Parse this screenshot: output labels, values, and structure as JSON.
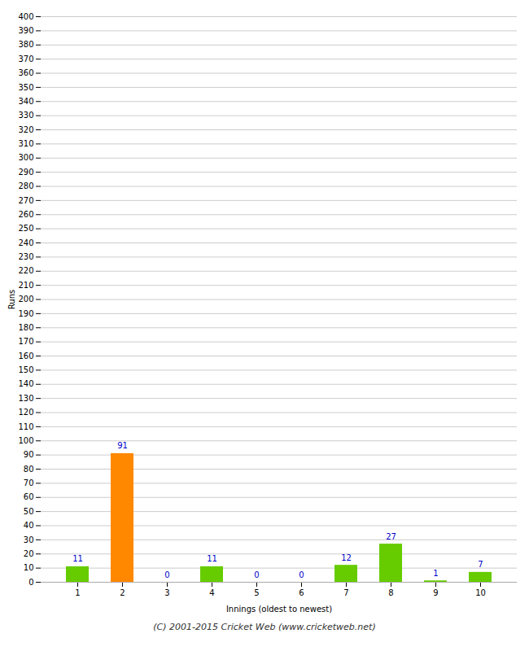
{
  "chart_data": {
    "type": "bar",
    "caption": "(C) 2001-2015 Cricket Web (www.cricketweb.net)",
    "xlabel": "Innings (oldest to newest)",
    "ylabel": "Runs",
    "categories": [
      1,
      2,
      3,
      4,
      5,
      6,
      7,
      8,
      9,
      10
    ],
    "values": [
      11,
      91,
      0,
      11,
      0,
      0,
      12,
      27,
      1,
      7
    ],
    "colors": [
      "#66cc00",
      "#ff8800",
      "#66cc00",
      "#66cc00",
      "#66cc00",
      "#66cc00",
      "#66cc00",
      "#66cc00",
      "#66cc00",
      "#66cc00"
    ],
    "ylim": [
      0,
      400
    ],
    "yticks": [
      0,
      10,
      20,
      30,
      40,
      50,
      60,
      70,
      80,
      90,
      100,
      110,
      120,
      130,
      140,
      150,
      160,
      170,
      180,
      190,
      200,
      210,
      220,
      230,
      240,
      250,
      260,
      270,
      280,
      290,
      300,
      310,
      320,
      330,
      340,
      350,
      360,
      370,
      380,
      390,
      400
    ],
    "grid": true,
    "data_labels": true
  }
}
